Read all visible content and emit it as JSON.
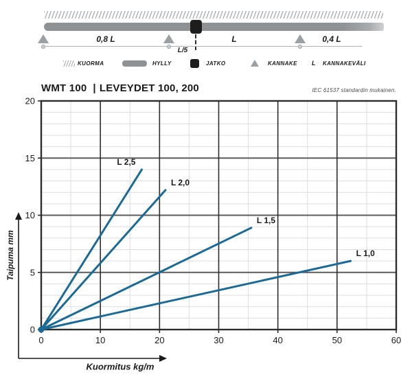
{
  "diagram": {
    "span_left_label": "0,8 L",
    "span_mid_label": "L",
    "span_right_label": "0,4 L",
    "joint_offset_label": "L/5"
  },
  "legend": {
    "items": [
      {
        "icon": "hatch-load-icon",
        "label": "KUORMA"
      },
      {
        "icon": "tray-bar-icon",
        "label": "HYLLY"
      },
      {
        "icon": "joint-square-icon",
        "label": "JATKO"
      },
      {
        "icon": "support-triangle-icon",
        "label": "KANNAKE"
      },
      {
        "icon": "letter-L-symbol",
        "symbol": "L",
        "label": "KANNAKEVÄLI"
      }
    ]
  },
  "header": {
    "model": "WMT 100",
    "divider": "|",
    "series_info": "LEVEYDET 100, 200",
    "standard_note": "IEC 61537 standardin mukainen."
  },
  "chart_data": {
    "type": "line",
    "title": "",
    "xlabel": "Kuormitus kg/m",
    "ylabel": "Taipuma mm",
    "xlim": [
      0,
      60
    ],
    "ylim": [
      0,
      20
    ],
    "x_major_ticks": [
      0,
      10,
      20,
      30,
      40,
      50,
      60
    ],
    "x_minor_step": 5,
    "y_major_ticks": [
      0,
      5,
      10,
      15,
      20
    ],
    "y_minor_step": 1,
    "grid": true,
    "legend_position": "inline-labels",
    "line_color": "#1b6a96",
    "series": [
      {
        "name": "L 2,5",
        "points": [
          [
            0,
            0
          ],
          [
            17,
            14
          ]
        ],
        "label_side": "left"
      },
      {
        "name": "L 2,0",
        "points": [
          [
            0,
            0
          ],
          [
            21,
            12.2
          ]
        ],
        "label_side": "right"
      },
      {
        "name": "L 1,5",
        "points": [
          [
            0,
            0
          ],
          [
            35.5,
            8.9
          ]
        ],
        "label_side": "right"
      },
      {
        "name": "L 1,0",
        "points": [
          [
            0,
            0
          ],
          [
            52.3,
            6
          ]
        ],
        "label_side": "right"
      }
    ]
  }
}
